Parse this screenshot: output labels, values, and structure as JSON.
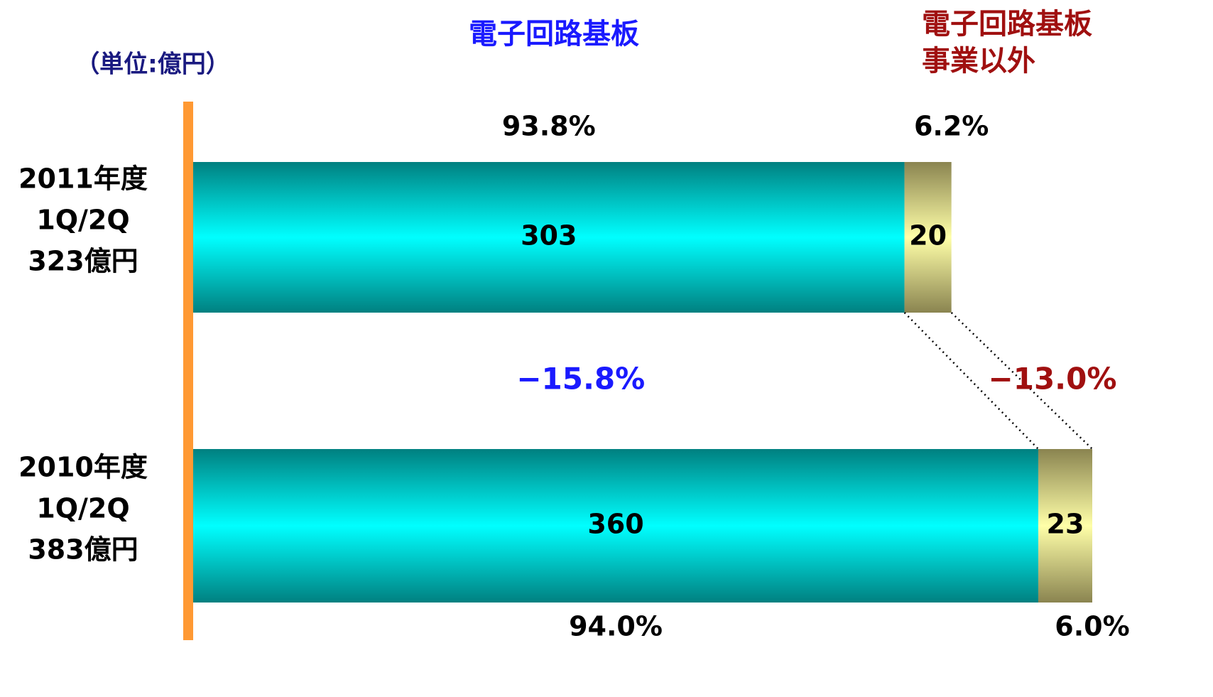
{
  "chart_data": {
    "type": "stacked_hbar",
    "unit_label": "（単位:億円）",
    "categories": [
      [
        "2011年度",
        "1Q/2Q",
        "323億円"
      ],
      [
        "2010年度",
        "1Q/2Q",
        "383億円"
      ]
    ],
    "series": [
      {
        "name": [
          "電子回路基板"
        ],
        "color": "#00ffff",
        "edge_color": "#008080",
        "title_color": "#1a1aff",
        "values": [
          303,
          360
        ],
        "share_labels": [
          "93.8%",
          "94.0%"
        ],
        "change_label": "−15.8%"
      },
      {
        "name": [
          "電子回路基板",
          "事業以外"
        ],
        "color": "#ffffa8",
        "edge_color": "#8a8450",
        "title_color": "#a01010",
        "values": [
          20,
          23
        ],
        "share_labels": [
          "6.2%",
          "6.0%"
        ],
        "change_label": "−13.0%"
      }
    ],
    "xlim": [
      0,
      383
    ]
  }
}
